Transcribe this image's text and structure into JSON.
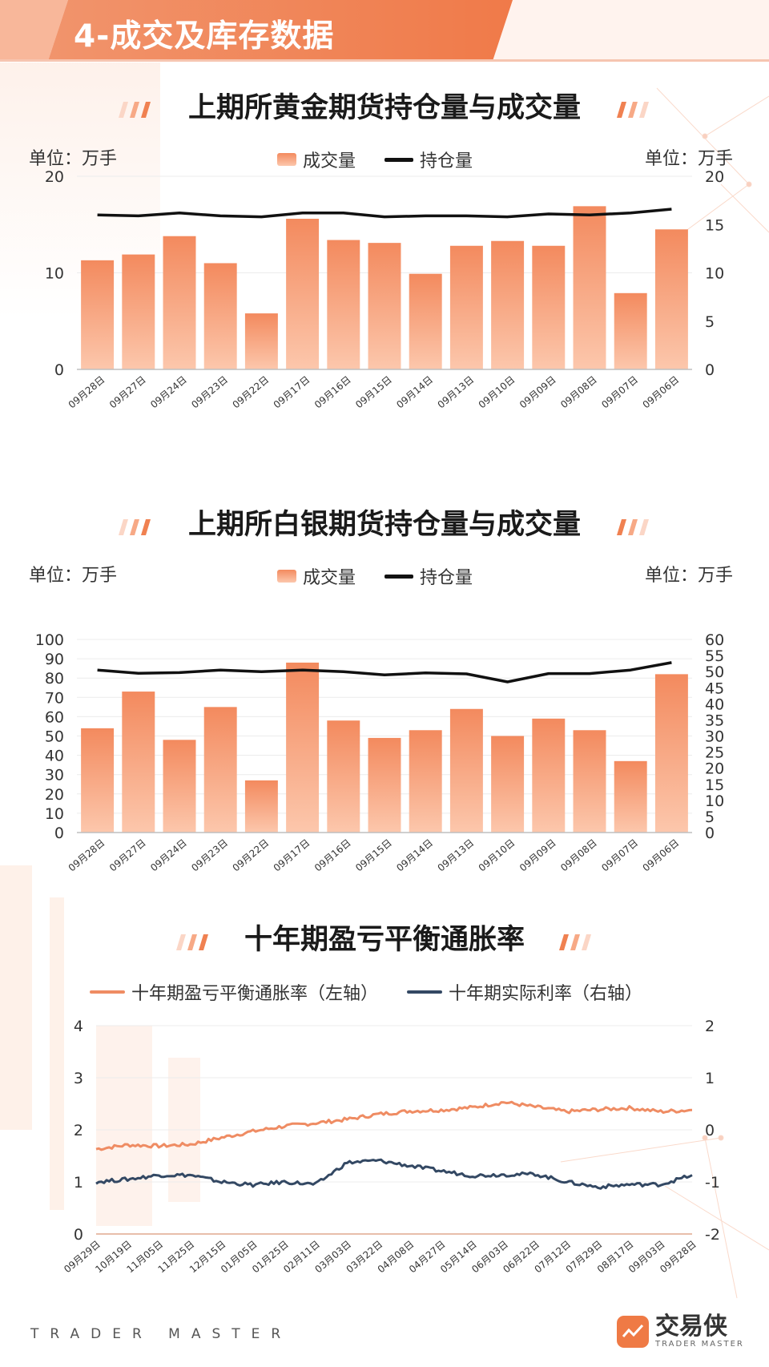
{
  "banner": {
    "number": "4",
    "title": "-成交及库存数据"
  },
  "charts": [
    {
      "title": "上期所黄金期货持仓量与成交量",
      "unit_left": "单位：万手",
      "unit_right": "单位：万手",
      "legend": {
        "bar": "成交量",
        "line": "持仓量"
      }
    },
    {
      "title": "上期所白银期货持仓量与成交量",
      "unit_left": "单位：万手",
      "unit_right": "单位：万手",
      "legend": {
        "bar": "成交量",
        "line": "持仓量"
      }
    },
    {
      "title": "十年期盈亏平衡通胀率",
      "legend": {
        "series1": "十年期盈亏平衡通胀率（左轴）",
        "series2": "十年期实际利率（右轴）"
      }
    }
  ],
  "colors": {
    "accent": "#ef7a45",
    "bar_top": "#f38a5e",
    "bar_bottom": "#fcc7ac",
    "line_black": "#111111",
    "line_orange": "#ef8c63",
    "line_navy": "#334863"
  },
  "chart_data": [
    {
      "type": "bar",
      "title": "上期所黄金期货持仓量与成交量",
      "categories": [
        "09月28日",
        "09月27日",
        "09月24日",
        "09月23日",
        "09月22日",
        "09月17日",
        "09月16日",
        "09月15日",
        "09月14日",
        "09月13日",
        "09月10日",
        "09月09日",
        "09月08日",
        "09月07日",
        "09月06日"
      ],
      "series": [
        {
          "name": "成交量",
          "type": "bar",
          "axis": "left",
          "values": [
            11.3,
            11.9,
            13.8,
            11.0,
            5.8,
            15.6,
            13.4,
            13.1,
            9.9,
            12.8,
            13.3,
            12.8,
            16.9,
            7.9,
            14.5
          ]
        },
        {
          "name": "持仓量",
          "type": "line",
          "axis": "right",
          "values": [
            16.0,
            15.9,
            16.2,
            15.9,
            15.8,
            16.2,
            16.2,
            15.8,
            15.9,
            15.9,
            15.8,
            16.1,
            16.0,
            16.2,
            16.6
          ]
        }
      ],
      "ylim_left": [
        0,
        20
      ],
      "yticks_left": [
        0,
        10,
        20
      ],
      "ylim_right": [
        0,
        20
      ],
      "yticks_right": [
        0,
        5,
        10,
        15,
        20
      ],
      "grid": true
    },
    {
      "type": "bar",
      "title": "上期所白银期货持仓量与成交量",
      "categories": [
        "09月28日",
        "09月27日",
        "09月24日",
        "09月23日",
        "09月22日",
        "09月17日",
        "09月16日",
        "09月15日",
        "09月14日",
        "09月13日",
        "09月10日",
        "09月09日",
        "09月08日",
        "09月07日",
        "09月06日"
      ],
      "series": [
        {
          "name": "成交量",
          "type": "bar",
          "axis": "left",
          "values": [
            54,
            73,
            48,
            65,
            27,
            88,
            58,
            49,
            53,
            64,
            50,
            59,
            53,
            37,
            82
          ]
        },
        {
          "name": "持仓量",
          "type": "line",
          "axis": "right",
          "values": [
            50.5,
            49.5,
            49.7,
            50.5,
            50.0,
            50.5,
            50.0,
            49.0,
            49.6,
            49.3,
            46.8,
            49.4,
            49.4,
            50.5,
            52.8
          ]
        }
      ],
      "ylim_left": [
        0,
        100
      ],
      "yticks_left": [
        0,
        10,
        20,
        30,
        40,
        50,
        60,
        70,
        80,
        90,
        100
      ],
      "ylim_right": [
        0,
        60
      ],
      "yticks_right": [
        0,
        5,
        10,
        15,
        20,
        25,
        30,
        35,
        40,
        45,
        50,
        55,
        60
      ],
      "grid": true
    },
    {
      "type": "line",
      "title": "十年期盈亏平衡通胀率",
      "x_tick_labels": [
        "09月29日",
        "10月19日",
        "11月05日",
        "11月25日",
        "12月15日",
        "01月05日",
        "01月25日",
        "02月11日",
        "03月03日",
        "03月22日",
        "04月08日",
        "04月27日",
        "05月14日",
        "06月03日",
        "06月22日",
        "07月12日",
        "07月29日",
        "08月17日",
        "09月03日",
        "09月28日"
      ],
      "series": [
        {
          "name": "十年期盈亏平衡通胀率（左轴）",
          "axis": "left",
          "values": [
            1.63,
            1.71,
            1.69,
            1.72,
            1.85,
            1.97,
            2.07,
            2.13,
            2.2,
            2.3,
            2.36,
            2.38,
            2.43,
            2.53,
            2.44,
            2.35,
            2.39,
            2.42,
            2.35,
            2.38
          ]
        },
        {
          "name": "十年期实际利率（右轴）",
          "axis": "right",
          "values": [
            -1.0,
            -0.95,
            -0.87,
            -0.87,
            -1.0,
            -1.06,
            -1.0,
            -1.05,
            -0.63,
            -0.59,
            -0.69,
            -0.79,
            -0.88,
            -0.86,
            -0.85,
            -1.0,
            -1.1,
            -1.05,
            -1.05,
            -0.87
          ]
        }
      ],
      "ylim_left": [
        0,
        4
      ],
      "yticks_left": [
        0,
        1,
        2,
        3,
        4
      ],
      "ylim_right": [
        -2,
        2
      ],
      "yticks_right": [
        -2,
        -1,
        0,
        1,
        2
      ],
      "grid": true
    }
  ]
}
